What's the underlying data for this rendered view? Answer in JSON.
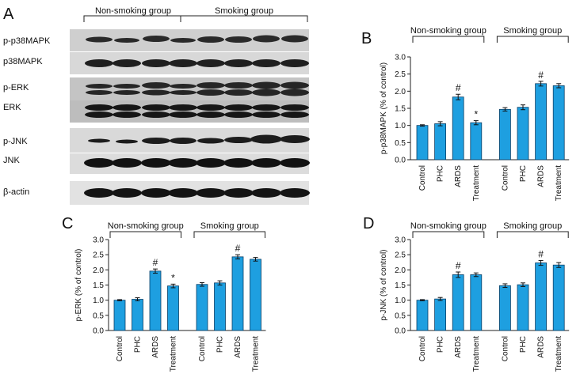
{
  "figure": {
    "panel_a_letter": "A",
    "blot_groups": [
      "Non-smoking group",
      "Smoking group"
    ],
    "blot_rows": [
      "p-p38MAPK",
      "p38MAPK",
      "p-ERK",
      "ERK",
      "p-JNK",
      "JNK",
      "β-actin"
    ]
  },
  "colors": {
    "bar_fill": "#1e9fe0",
    "bar_stroke": "#0b3f66",
    "axis": "#222222"
  },
  "chart_data": [
    {
      "panel": "B",
      "type": "bar",
      "ylabel": "p-p38MAPK (% of control)",
      "ylim": [
        0,
        3
      ],
      "yticks": [
        "0.0",
        "0.5",
        "1.0",
        "1.5",
        "2.0",
        "2.5",
        "3.0"
      ],
      "groups": [
        "Non-smoking group",
        "Smoking group"
      ],
      "categories": [
        "Control",
        "PHC",
        "ARDS",
        "Treatment",
        "Control",
        "PHC",
        "ARDS",
        "Treatment"
      ],
      "values": [
        1.0,
        1.05,
        1.83,
        1.08,
        1.47,
        1.53,
        2.22,
        2.16
      ],
      "errors": [
        0.02,
        0.06,
        0.08,
        0.06,
        0.05,
        0.07,
        0.07,
        0.06
      ],
      "marks": [
        "",
        "",
        "#",
        "*",
        "",
        "",
        "#",
        ""
      ],
      "grid": false
    },
    {
      "panel": "C",
      "type": "bar",
      "ylabel": "p-ERK (% of control)",
      "ylim": [
        0,
        3
      ],
      "yticks": [
        "0.0",
        "0.5",
        "1.0",
        "1.5",
        "2.0",
        "2.5",
        "3.0"
      ],
      "groups": [
        "Non-smoking group",
        "Smoking group"
      ],
      "categories": [
        "Control",
        "PHC",
        "ARDS",
        "Treatment",
        "Control",
        "PHC",
        "ARDS",
        "Treatment"
      ],
      "values": [
        1.0,
        1.03,
        1.96,
        1.47,
        1.52,
        1.57,
        2.43,
        2.35
      ],
      "errors": [
        0.02,
        0.05,
        0.07,
        0.06,
        0.06,
        0.07,
        0.07,
        0.06
      ],
      "marks": [
        "",
        "",
        "#",
        "*",
        "",
        "",
        "#",
        ""
      ],
      "grid": false
    },
    {
      "panel": "D",
      "type": "bar",
      "ylabel": "p-JNK (% of control)",
      "ylim": [
        0,
        3
      ],
      "yticks": [
        "0.0",
        "0.5",
        "1.0",
        "1.5",
        "2.0",
        "2.5",
        "3.0"
      ],
      "groups": [
        "Non-smoking group",
        "Smoking group"
      ],
      "categories": [
        "Control",
        "PHC",
        "ARDS",
        "Treatment",
        "Control",
        "PHC",
        "ARDS",
        "Treatment"
      ],
      "values": [
        1.0,
        1.04,
        1.84,
        1.84,
        1.48,
        1.51,
        2.23,
        2.16
      ],
      "errors": [
        0.02,
        0.05,
        0.09,
        0.06,
        0.06,
        0.06,
        0.08,
        0.08
      ],
      "marks": [
        "",
        "",
        "#",
        "",
        "",
        "",
        "#",
        ""
      ],
      "grid": false
    }
  ]
}
